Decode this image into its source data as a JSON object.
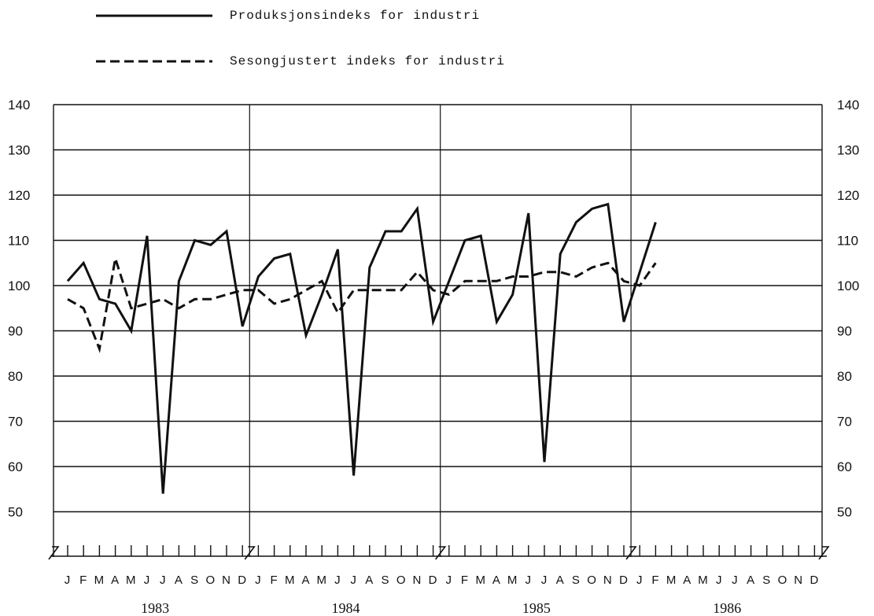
{
  "chart_data": {
    "type": "line",
    "title": "",
    "xlabel": "",
    "ylabel": "",
    "ylim": [
      40,
      140
    ],
    "y_ticks": [
      50,
      60,
      70,
      80,
      90,
      100,
      110,
      120,
      130,
      140
    ],
    "grid": true,
    "legend_position": "top-left",
    "years": [
      "1983",
      "1984",
      "1985",
      "1986"
    ],
    "month_labels": [
      "J",
      "F",
      "M",
      "A",
      "M",
      "J",
      "J",
      "A",
      "S",
      "O",
      "N",
      "D"
    ],
    "n_months": 48,
    "series": [
      {
        "name": "Produksjonsindeks for industri",
        "style": "solid",
        "values": [
          101,
          105,
          97,
          96,
          90,
          111,
          54,
          101,
          110,
          109,
          112,
          91,
          102,
          106,
          107,
          89,
          98,
          108,
          58,
          104,
          112,
          112,
          117,
          92,
          101,
          110,
          111,
          92,
          98,
          116,
          61,
          107,
          114,
          117,
          118,
          92,
          103,
          114
        ]
      },
      {
        "name": "Sesongjustert indeks for industri",
        "style": "dashed",
        "values": [
          97,
          95,
          86,
          106,
          95,
          96,
          97,
          95,
          97,
          97,
          98,
          99,
          99,
          96,
          97,
          99,
          101,
          94,
          99,
          99,
          99,
          99,
          103,
          99,
          98,
          101,
          101,
          101,
          102,
          102,
          103,
          103,
          102,
          104,
          105,
          101,
          100,
          105
        ]
      }
    ]
  }
}
